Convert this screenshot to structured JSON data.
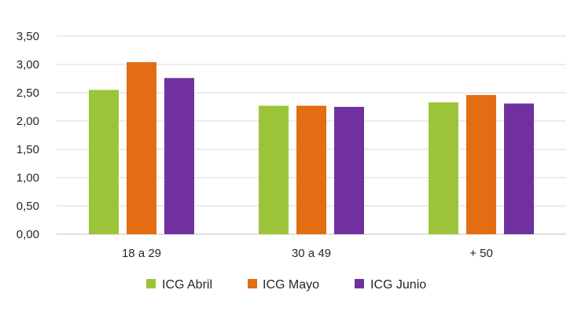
{
  "chart_data": {
    "type": "bar",
    "title": "",
    "xlabel": "",
    "ylabel": "",
    "categories": [
      "18 a 29",
      "30 a 49",
      "+ 50"
    ],
    "series": [
      {
        "name": "ICG Abril",
        "color": "#9bc43a",
        "values": [
          2.55,
          2.27,
          2.33
        ]
      },
      {
        "name": "ICG Mayo",
        "color": "#e46c13",
        "values": [
          3.04,
          2.27,
          2.46
        ]
      },
      {
        "name": "ICG Junio",
        "color": "#7030a0",
        "values": [
          2.76,
          2.25,
          2.31
        ]
      }
    ],
    "ylim": [
      0,
      3.5
    ],
    "yticks": [
      "0,00",
      "0,50",
      "1,00",
      "1,50",
      "2,00",
      "2,50",
      "3,00",
      "3,50"
    ],
    "grid": true,
    "legend_position": "bottom"
  }
}
